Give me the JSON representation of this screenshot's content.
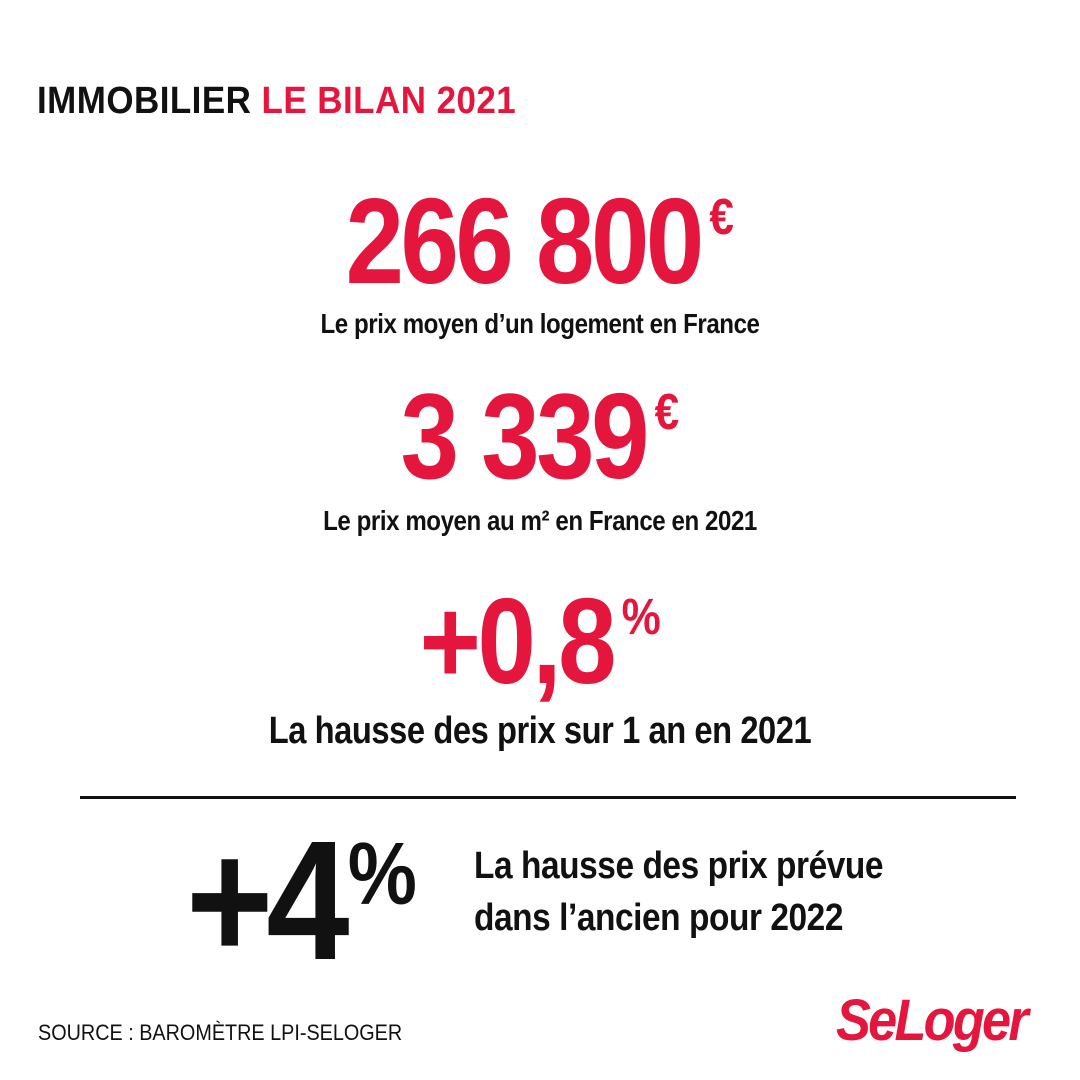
{
  "header": {
    "part1": "IMMOBILIER",
    "part2": "LE BILAN 2021"
  },
  "stats": [
    {
      "value": "266 800",
      "unit": "€",
      "label": "Le prix moyen d’un logement en France"
    },
    {
      "value": "3 339",
      "unit": "€",
      "label": "Le prix moyen au m² en France en 2021"
    },
    {
      "value": "+0,8",
      "unit": "%",
      "label": "La hausse des prix sur 1 an en 2021"
    }
  ],
  "forecast": {
    "value": "+4",
    "unit": "%",
    "label_line1": "La hausse des prix prévue",
    "label_line2": "dans l’ancien pour 2022"
  },
  "footer": {
    "source": "SOURCE : BAROMÈTRE LPI-SELOGER",
    "logo": "SeLoger"
  },
  "colors": {
    "accent": "#e5163d",
    "text": "#111111",
    "background": "#ffffff"
  }
}
